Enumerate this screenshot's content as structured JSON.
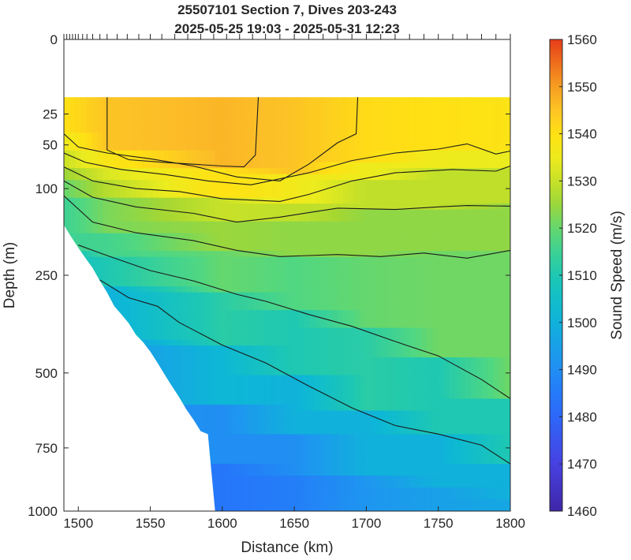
{
  "chart_data": {
    "type": "heatmap",
    "title": [
      "25507101 Section 7, Dives 203-243",
      "2025-05-25 19:03 - 2025-05-31 12:23"
    ],
    "xlabel": "Distance (km)",
    "ylabel": "Depth (m)",
    "colorbar_label": "Sound Speed (m/s)",
    "xlim": [
      1490,
      1800
    ],
    "ylim": [
      0,
      1000
    ],
    "y_scale": "sqrt",
    "x_ticks": [
      1500,
      1550,
      1600,
      1650,
      1700,
      1750,
      1800
    ],
    "y_ticks": [
      0,
      25,
      50,
      100,
      250,
      500,
      750,
      1000
    ],
    "clim": [
      1460,
      1560
    ],
    "colorbar_ticks": [
      1460,
      1470,
      1480,
      1490,
      1500,
      1510,
      1520,
      1530,
      1540,
      1550,
      1560
    ],
    "top_of_data_depth": 15,
    "contour_levels": [
      1490,
      1500,
      1510,
      1520,
      1525,
      1530,
      1535,
      1540,
      1545
    ],
    "dive_positions_km": [
      1490,
      1492,
      1494,
      1496,
      1498,
      1500,
      1503,
      1506,
      1510,
      1515,
      1520,
      1527,
      1534,
      1542,
      1550,
      1558,
      1567,
      1576,
      1585,
      1594,
      1603,
      1612,
      1621,
      1630,
      1640,
      1650,
      1660,
      1670,
      1680,
      1690,
      1700,
      1710,
      1720,
      1730,
      1740,
      1750,
      1760,
      1770,
      1780,
      1790,
      1800
    ],
    "profile_max_depth": [
      [
        1490,
        155
      ],
      [
        1495,
        175
      ],
      [
        1500,
        195
      ],
      [
        1505,
        215
      ],
      [
        1510,
        235
      ],
      [
        1515,
        262
      ],
      [
        1520,
        288
      ],
      [
        1525,
        320
      ],
      [
        1530,
        340
      ],
      [
        1535,
        362
      ],
      [
        1540,
        392
      ],
      [
        1545,
        412
      ],
      [
        1550,
        438
      ],
      [
        1555,
        470
      ],
      [
        1560,
        505
      ],
      [
        1565,
        540
      ],
      [
        1570,
        575
      ],
      [
        1575,
        615
      ],
      [
        1580,
        650
      ],
      [
        1585,
        690
      ],
      [
        1590,
        700
      ],
      [
        1595,
        1000
      ],
      [
        1800,
        1000
      ]
    ],
    "isopleths": [
      {
        "level": 1545,
        "points": [
          [
            1520,
            15
          ],
          [
            1520,
            55
          ],
          [
            1535,
            65
          ],
          [
            1560,
            68
          ],
          [
            1600,
            72
          ],
          [
            1615,
            73
          ],
          [
            1623,
            60
          ],
          [
            1625,
            15
          ]
        ]
      },
      {
        "level": 1540,
        "points": [
          [
            1490,
            40
          ],
          [
            1500,
            52
          ],
          [
            1520,
            58
          ],
          [
            1550,
            64
          ],
          [
            1580,
            72
          ],
          [
            1610,
            85
          ],
          [
            1640,
            90
          ],
          [
            1660,
            70
          ],
          [
            1680,
            48
          ],
          [
            1693,
            40
          ],
          [
            1694,
            15
          ]
        ]
      },
      {
        "level": 1535,
        "points": [
          [
            1490,
            58
          ],
          [
            1505,
            68
          ],
          [
            1530,
            76
          ],
          [
            1560,
            82
          ],
          [
            1590,
            90
          ],
          [
            1620,
            95
          ],
          [
            1660,
            80
          ],
          [
            1690,
            66
          ],
          [
            1720,
            58
          ],
          [
            1750,
            54
          ],
          [
            1770,
            49
          ],
          [
            1790,
            59
          ],
          [
            1800,
            56
          ]
        ]
      },
      {
        "level": 1530,
        "points": [
          [
            1490,
            73
          ],
          [
            1510,
            90
          ],
          [
            1540,
            100
          ],
          [
            1570,
            104
          ],
          [
            1600,
            114
          ],
          [
            1640,
            118
          ],
          [
            1660,
            108
          ],
          [
            1690,
            90
          ],
          [
            1720,
            80
          ],
          [
            1760,
            76
          ],
          [
            1790,
            78
          ],
          [
            1800,
            72
          ]
        ]
      },
      {
        "level": 1525,
        "points": [
          [
            1490,
            90
          ],
          [
            1510,
            112
          ],
          [
            1540,
            126
          ],
          [
            1580,
            136
          ],
          [
            1610,
            150
          ],
          [
            1640,
            142
          ],
          [
            1680,
            128
          ],
          [
            1720,
            130
          ],
          [
            1750,
            126
          ],
          [
            1770,
            124
          ],
          [
            1800,
            125
          ]
        ]
      },
      {
        "level": 1520,
        "points": [
          [
            1490,
            110
          ],
          [
            1510,
            150
          ],
          [
            1540,
            168
          ],
          [
            1580,
            182
          ],
          [
            1610,
            200
          ],
          [
            1640,
            212
          ],
          [
            1680,
            208
          ],
          [
            1710,
            212
          ],
          [
            1740,
            205
          ],
          [
            1770,
            215
          ],
          [
            1800,
            200
          ]
        ]
      },
      {
        "level": 1510,
        "points": [
          [
            1500,
            190
          ],
          [
            1520,
            210
          ],
          [
            1550,
            240
          ],
          [
            1580,
            262
          ],
          [
            1610,
            292
          ],
          [
            1630,
            308
          ],
          [
            1660,
            340
          ],
          [
            1690,
            370
          ],
          [
            1720,
            410
          ],
          [
            1750,
            450
          ],
          [
            1780,
            520
          ],
          [
            1800,
            580
          ]
        ]
      },
      {
        "level": 1500,
        "points": [
          [
            1515,
            260
          ],
          [
            1535,
            300
          ],
          [
            1555,
            320
          ],
          [
            1570,
            360
          ],
          [
            1600,
            420
          ],
          [
            1630,
            470
          ],
          [
            1660,
            540
          ],
          [
            1690,
            610
          ],
          [
            1720,
            670
          ],
          [
            1750,
            700
          ],
          [
            1780,
            740
          ],
          [
            1800,
            810
          ]
        ]
      }
    ],
    "profiles": [
      {
        "x": 1490,
        "bands": [
          [
            15,
            1540
          ],
          [
            40,
            1535
          ],
          [
            58,
            1530
          ],
          [
            73,
            1525
          ],
          [
            90,
            1520
          ],
          [
            110,
            1515
          ],
          [
            200,
            1505
          ]
        ]
      },
      {
        "x": 1520,
        "bands": [
          [
            15,
            1545
          ],
          [
            58,
            1538
          ],
          [
            76,
            1532
          ],
          [
            90,
            1528
          ],
          [
            112,
            1522
          ],
          [
            168,
            1516
          ],
          [
            210,
            1510
          ],
          [
            280,
            1500
          ],
          [
            400,
            1492
          ]
        ]
      },
      {
        "x": 1600,
        "bands": [
          [
            15,
            1547
          ],
          [
            72,
            1540
          ],
          [
            114,
            1530
          ],
          [
            150,
            1525
          ],
          [
            200,
            1520
          ],
          [
            290,
            1512
          ],
          [
            420,
            1502
          ],
          [
            600,
            1490
          ],
          [
            800,
            1484
          ]
        ]
      },
      {
        "x": 1650,
        "bands": [
          [
            15,
            1545
          ],
          [
            85,
            1536
          ],
          [
            118,
            1529
          ],
          [
            145,
            1524
          ],
          [
            212,
            1518
          ],
          [
            330,
            1510
          ],
          [
            500,
            1500
          ],
          [
            700,
            1490
          ],
          [
            850,
            1486
          ]
        ]
      },
      {
        "x": 1700,
        "bands": [
          [
            15,
            1541
          ],
          [
            66,
            1535
          ],
          [
            90,
            1529
          ],
          [
            128,
            1524
          ],
          [
            208,
            1520
          ],
          [
            380,
            1512
          ],
          [
            620,
            1500
          ],
          [
            850,
            1492
          ]
        ]
      },
      {
        "x": 1750,
        "bands": [
          [
            15,
            1540
          ],
          [
            54,
            1535
          ],
          [
            76,
            1529
          ],
          [
            126,
            1524
          ],
          [
            205,
            1521
          ],
          [
            450,
            1510
          ],
          [
            700,
            1500
          ],
          [
            900,
            1495
          ]
        ]
      },
      {
        "x": 1800,
        "bands": [
          [
            15,
            1539
          ],
          [
            56,
            1534
          ],
          [
            72,
            1529
          ],
          [
            125,
            1524
          ],
          [
            200,
            1521
          ],
          [
            580,
            1510
          ],
          [
            810,
            1500
          ],
          [
            950,
            1497
          ]
        ]
      }
    ]
  }
}
